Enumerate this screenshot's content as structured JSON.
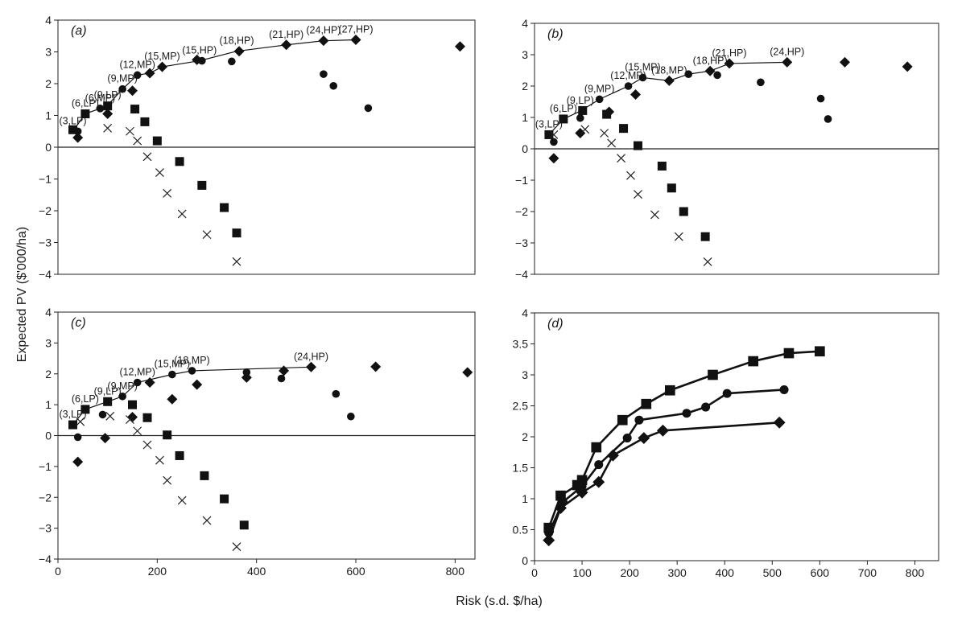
{
  "figure": {
    "ylabel": "Expected PV ($'000/ha)",
    "xlabel": "Risk (s.d. $/ha)"
  },
  "chart_data": [
    {
      "panel": "a",
      "type": "scatter",
      "panel_label_text": "(a)",
      "xlim": [
        0,
        840
      ],
      "ylim": [
        -4,
        4
      ],
      "yticks": [
        "4",
        "3",
        "2",
        "1",
        "0",
        "−1",
        "−2",
        "−3",
        "−4"
      ],
      "xticks": [],
      "frontier": [
        [
          30,
          0.5
        ],
        [
          55,
          1.05
        ],
        [
          85,
          1.22
        ],
        [
          100,
          1.32
        ],
        [
          130,
          1.83
        ],
        [
          160,
          2.27
        ],
        [
          185,
          2.33
        ],
        [
          210,
          2.53
        ],
        [
          285,
          2.72
        ],
        [
          360,
          3.02
        ],
        [
          460,
          3.22
        ],
        [
          535,
          3.35
        ],
        [
          600,
          3.38
        ]
      ],
      "series": [
        {
          "marker": "square",
          "points": [
            [
              30,
              0.55
            ],
            [
              55,
              1.05
            ],
            [
              100,
              1.3
            ],
            [
              155,
              1.2
            ],
            [
              175,
              0.8
            ],
            [
              200,
              0.2
            ],
            [
              245,
              -0.45
            ],
            [
              290,
              -1.2
            ],
            [
              335,
              -1.9
            ],
            [
              360,
              -2.7
            ]
          ]
        },
        {
          "marker": "circle",
          "points": [
            [
              40,
              0.5
            ],
            [
              85,
              1.22
            ],
            [
              130,
              1.83
            ],
            [
              160,
              2.27
            ],
            [
              290,
              2.72
            ],
            [
              350,
              2.7
            ],
            [
              535,
              2.3
            ],
            [
              555,
              1.93
            ],
            [
              625,
              1.23
            ]
          ]
        },
        {
          "marker": "diamond",
          "points": [
            [
              40,
              0.3
            ],
            [
              100,
              1.05
            ],
            [
              150,
              1.78
            ],
            [
              185,
              2.33
            ],
            [
              210,
              2.53
            ],
            [
              280,
              2.75
            ],
            [
              365,
              3.02
            ],
            [
              460,
              3.22
            ],
            [
              535,
              3.35
            ],
            [
              600,
              3.38
            ],
            [
              810,
              3.17
            ]
          ]
        },
        {
          "marker": "cross",
          "points": [
            [
              100,
              0.6
            ],
            [
              145,
              0.5
            ],
            [
              160,
              0.2
            ],
            [
              180,
              -0.3
            ],
            [
              205,
              -0.8
            ],
            [
              220,
              -1.45
            ],
            [
              250,
              -2.1
            ],
            [
              300,
              -2.75
            ],
            [
              360,
              -3.6
            ]
          ]
        }
      ],
      "labels": [
        {
          "text": "(3,LP)",
          "x": 30,
          "y": 0.5
        },
        {
          "text": "(6,LP)",
          "x": 55,
          "y": 1.05
        },
        {
          "text": "(6,MP)",
          "x": 85,
          "y": 1.22
        },
        {
          "text": "(9,LP)",
          "x": 100,
          "y": 1.32
        },
        {
          "text": "(9,MP)",
          "x": 130,
          "y": 1.83
        },
        {
          "text": "(12,MP)",
          "x": 160,
          "y": 2.27
        },
        {
          "text": "(15,MP)",
          "x": 210,
          "y": 2.53
        },
        {
          "text": "(15,HP)",
          "x": 285,
          "y": 2.72
        },
        {
          "text": "(18,HP)",
          "x": 360,
          "y": 3.02
        },
        {
          "text": "(21,HP)",
          "x": 460,
          "y": 3.22
        },
        {
          "text": "(24,HP)",
          "x": 535,
          "y": 3.35
        },
        {
          "text": "(27,HP)",
          "x": 600,
          "y": 3.38
        }
      ]
    },
    {
      "panel": "b",
      "type": "scatter",
      "panel_label_text": "(b)",
      "xlim": [
        0,
        840
      ],
      "ylim": [
        -4,
        4
      ],
      "yticks": [
        "4",
        "3",
        "2",
        "1",
        "0",
        "−1",
        "−2",
        "−3",
        "−4"
      ],
      "xticks": [],
      "frontier": [
        [
          30,
          0.45
        ],
        [
          60,
          0.95
        ],
        [
          95,
          1.2
        ],
        [
          135,
          1.58
        ],
        [
          195,
          2.0
        ],
        [
          225,
          2.27
        ],
        [
          280,
          2.17
        ],
        [
          320,
          2.38
        ],
        [
          365,
          2.48
        ],
        [
          405,
          2.72
        ],
        [
          525,
          2.76
        ]
      ],
      "series": [
        {
          "marker": "square",
          "points": [
            [
              30,
              0.45
            ],
            [
              60,
              0.95
            ],
            [
              100,
              1.22
            ],
            [
              150,
              1.1
            ],
            [
              185,
              0.65
            ],
            [
              215,
              0.1
            ],
            [
              265,
              -0.55
            ],
            [
              285,
              -1.25
            ],
            [
              310,
              -2.0
            ],
            [
              355,
              -2.8
            ]
          ]
        },
        {
          "marker": "circle",
          "points": [
            [
              40,
              0.22
            ],
            [
              95,
              0.98
            ],
            [
              135,
              1.58
            ],
            [
              195,
              2.0
            ],
            [
              225,
              2.27
            ],
            [
              320,
              2.38
            ],
            [
              380,
              2.35
            ],
            [
              470,
              2.12
            ],
            [
              595,
              1.6
            ],
            [
              610,
              0.95
            ]
          ]
        },
        {
          "marker": "diamond",
          "points": [
            [
              40,
              -0.3
            ],
            [
              95,
              0.5
            ],
            [
              155,
              1.18
            ],
            [
              210,
              1.73
            ],
            [
              280,
              2.17
            ],
            [
              365,
              2.48
            ],
            [
              405,
              2.72
            ],
            [
              525,
              2.76
            ],
            [
              645,
              2.76
            ],
            [
              775,
              2.62
            ]
          ]
        },
        {
          "marker": "cross",
          "points": [
            [
              40,
              0.45
            ],
            [
              105,
              0.62
            ],
            [
              145,
              0.5
            ],
            [
              160,
              0.18
            ],
            [
              180,
              -0.3
            ],
            [
              200,
              -0.85
            ],
            [
              215,
              -1.45
            ],
            [
              250,
              -2.1
            ],
            [
              300,
              -2.8
            ],
            [
              360,
              -3.6
            ]
          ]
        }
      ],
      "labels": [
        {
          "text": "(3,LP)",
          "x": 30,
          "y": 0.45
        },
        {
          "text": "(6,LP)",
          "x": 60,
          "y": 0.95
        },
        {
          "text": "(9,LP)",
          "x": 95,
          "y": 1.2
        },
        {
          "text": "(9,MP)",
          "x": 135,
          "y": 1.58
        },
        {
          "text": "(12,MP)",
          "x": 195,
          "y": 2.0
        },
        {
          "text": "(15,MP)",
          "x": 225,
          "y": 2.27
        },
        {
          "text": "(18,MP)",
          "x": 280,
          "y": 2.17
        },
        {
          "text": "(18,HP)",
          "x": 365,
          "y": 2.48
        },
        {
          "text": "(21,HP)",
          "x": 405,
          "y": 2.72
        },
        {
          "text": "(24,HP)",
          "x": 525,
          "y": 2.76
        }
      ]
    },
    {
      "panel": "c",
      "type": "scatter",
      "panel_label_text": "(c)",
      "xlim": [
        0,
        840
      ],
      "ylim": [
        -4,
        4
      ],
      "yticks": [
        "4",
        "3",
        "2",
        "1",
        "0",
        "−1",
        "−2",
        "−3",
        "−4"
      ],
      "xticks": [
        "0",
        "200",
        "400",
        "600",
        "800"
      ],
      "frontier": [
        [
          30,
          0.35
        ],
        [
          55,
          0.85
        ],
        [
          100,
          1.1
        ],
        [
          130,
          1.27
        ],
        [
          160,
          1.72
        ],
        [
          230,
          1.98
        ],
        [
          270,
          2.1
        ],
        [
          510,
          2.22
        ]
      ],
      "series": [
        {
          "marker": "square",
          "points": [
            [
              30,
              0.35
            ],
            [
              55,
              0.85
            ],
            [
              100,
              1.1
            ],
            [
              150,
              1.0
            ],
            [
              180,
              0.58
            ],
            [
              220,
              0.02
            ],
            [
              245,
              -0.65
            ],
            [
              295,
              -1.3
            ],
            [
              335,
              -2.05
            ],
            [
              375,
              -2.9
            ]
          ]
        },
        {
          "marker": "circle",
          "points": [
            [
              40,
              -0.05
            ],
            [
              90,
              0.68
            ],
            [
              130,
              1.27
            ],
            [
              160,
              1.72
            ],
            [
              230,
              1.98
            ],
            [
              270,
              2.1
            ],
            [
              380,
              2.05
            ],
            [
              450,
              1.85
            ],
            [
              560,
              1.35
            ],
            [
              590,
              0.62
            ]
          ]
        },
        {
          "marker": "diamond",
          "points": [
            [
              40,
              -0.85
            ],
            [
              95,
              -0.08
            ],
            [
              150,
              0.6
            ],
            [
              185,
              1.72
            ],
            [
              230,
              1.18
            ],
            [
              280,
              1.65
            ],
            [
              380,
              1.88
            ],
            [
              455,
              2.1
            ],
            [
              510,
              2.22
            ],
            [
              640,
              2.23
            ],
            [
              825,
              2.05
            ]
          ]
        },
        {
          "marker": "cross",
          "points": [
            [
              45,
              0.45
            ],
            [
              105,
              0.63
            ],
            [
              145,
              0.52
            ],
            [
              160,
              0.15
            ],
            [
              180,
              -0.3
            ],
            [
              205,
              -0.8
            ],
            [
              220,
              -1.45
            ],
            [
              250,
              -2.1
            ],
            [
              300,
              -2.75
            ],
            [
              360,
              -3.6
            ]
          ]
        }
      ],
      "labels": [
        {
          "text": "(3,LP)",
          "x": 30,
          "y": 0.35
        },
        {
          "text": "(6,LP)",
          "x": 55,
          "y": 0.85
        },
        {
          "text": "(9,LP)",
          "x": 100,
          "y": 1.1
        },
        {
          "text": "(9,MP)",
          "x": 130,
          "y": 1.27
        },
        {
          "text": "(12,MP)",
          "x": 160,
          "y": 1.72
        },
        {
          "text": "(15,MP)",
          "x": 230,
          "y": 1.98
        },
        {
          "text": "(18,MP)",
          "x": 270,
          "y": 2.1
        },
        {
          "text": "(24,HP)",
          "x": 510,
          "y": 2.22
        }
      ]
    },
    {
      "panel": "d",
      "type": "line",
      "panel_label_text": "(d)",
      "xlim": [
        0,
        850
      ],
      "ylim": [
        0,
        4
      ],
      "yticks": [
        "4",
        "3.5",
        "3",
        "2.5",
        "2",
        "1.5",
        "1",
        "0.5",
        "0"
      ],
      "xticks": [
        "0",
        "100",
        "200",
        "300",
        "400",
        "500",
        "600",
        "700",
        "800"
      ],
      "series": [
        {
          "marker": "square",
          "points": [
            [
              30,
              0.53
            ],
            [
              55,
              1.05
            ],
            [
              90,
              1.22
            ],
            [
              100,
              1.3
            ],
            [
              130,
              1.83
            ],
            [
              185,
              2.27
            ],
            [
              235,
              2.53
            ],
            [
              285,
              2.75
            ],
            [
              375,
              3.0
            ],
            [
              460,
              3.22
            ],
            [
              535,
              3.35
            ],
            [
              600,
              3.38
            ]
          ]
        },
        {
          "marker": "circle",
          "points": [
            [
              30,
              0.45
            ],
            [
              60,
              0.95
            ],
            [
              100,
              1.2
            ],
            [
              135,
              1.55
            ],
            [
              195,
              1.98
            ],
            [
              220,
              2.27
            ],
            [
              320,
              2.38
            ],
            [
              360,
              2.48
            ],
            [
              405,
              2.7
            ],
            [
              525,
              2.76
            ]
          ]
        },
        {
          "marker": "diamond",
          "points": [
            [
              30,
              0.33
            ],
            [
              55,
              0.85
            ],
            [
              100,
              1.1
            ],
            [
              135,
              1.27
            ],
            [
              165,
              1.7
            ],
            [
              230,
              1.98
            ],
            [
              270,
              2.1
            ],
            [
              515,
              2.23
            ]
          ]
        }
      ]
    }
  ]
}
